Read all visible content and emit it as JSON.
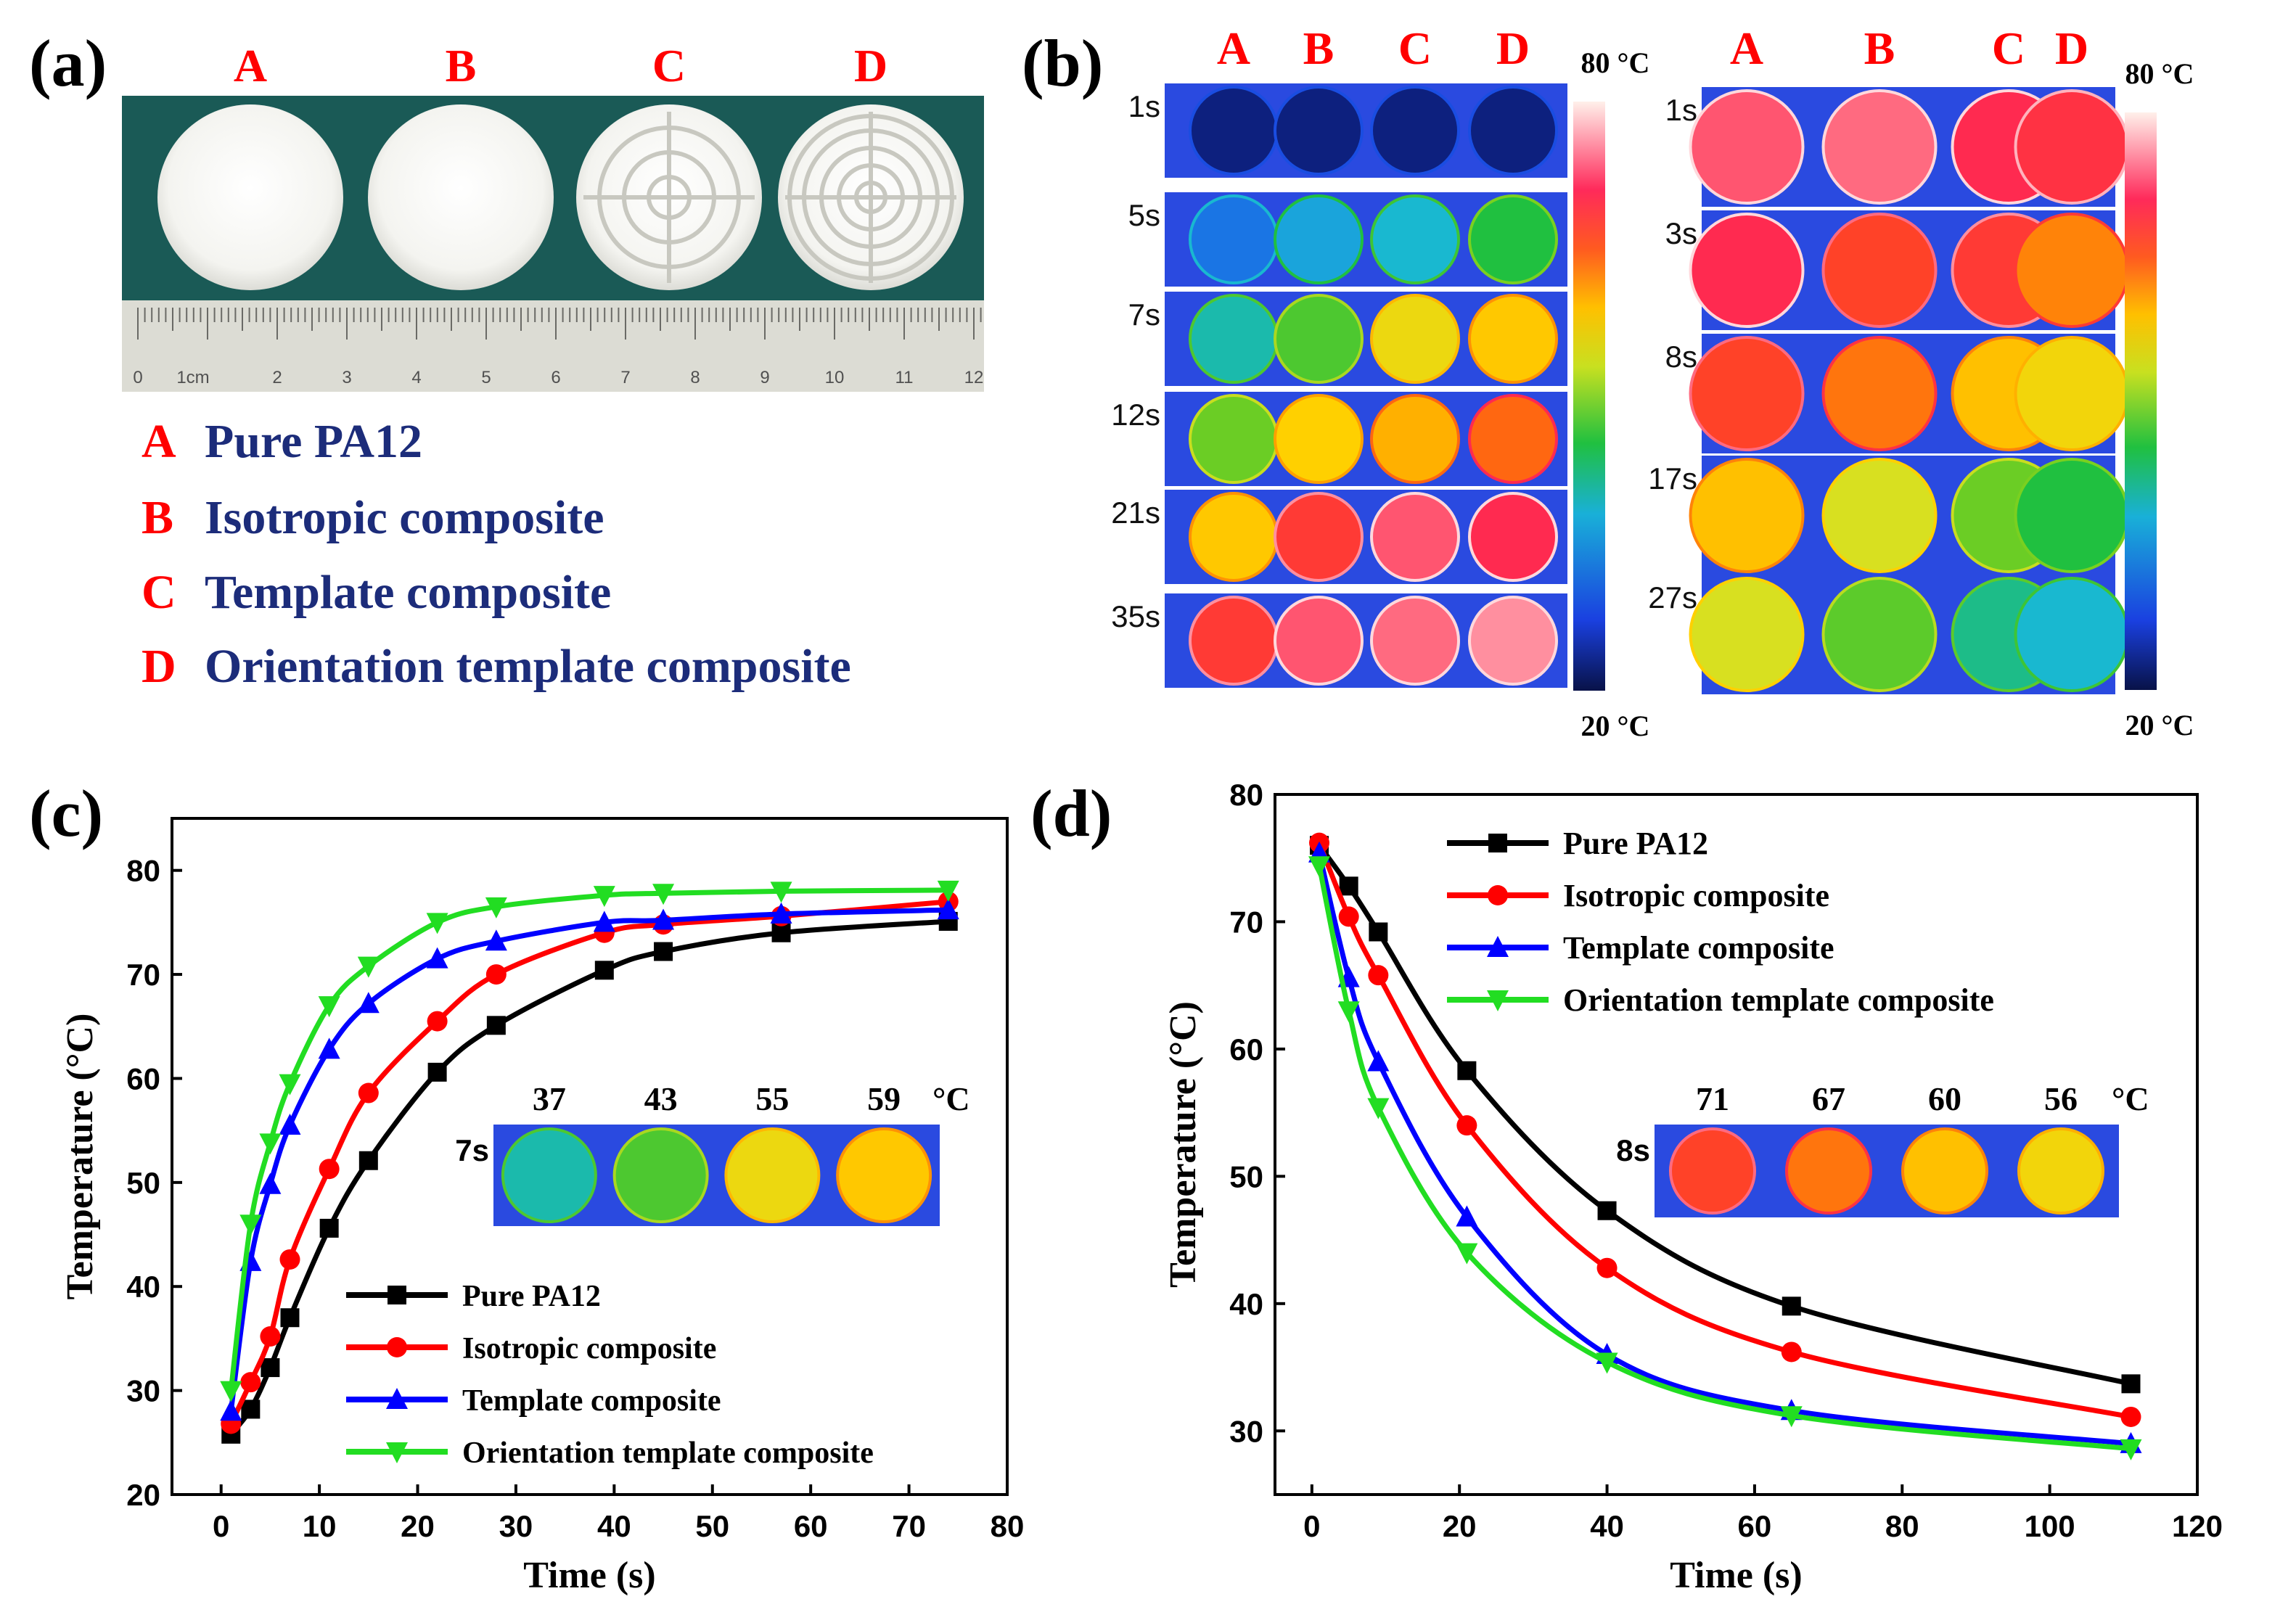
{
  "figure": {
    "panel_a": {
      "label": "(a)",
      "column_letters": [
        "A",
        "B",
        "C",
        "D"
      ],
      "ruler_unit": "1cm",
      "ruler_numbers": [
        "0",
        "2",
        "3",
        "4",
        "5",
        "6",
        "7",
        "8",
        "9",
        "10",
        "11",
        "12"
      ],
      "legend": [
        {
          "letter": "A",
          "text": "Pure PA12"
        },
        {
          "letter": "B",
          "text": "Isotropic composite"
        },
        {
          "letter": "C",
          "text": "Template composite"
        },
        {
          "letter": "D",
          "text": "Orientation template composite"
        }
      ]
    },
    "panel_b": {
      "label": "(b)",
      "column_letters": [
        "A",
        "B",
        "C",
        "D"
      ],
      "heating": {
        "times": [
          "1s",
          "5s",
          "7s",
          "12s",
          "21s",
          "35s"
        ],
        "temperatures_c": [
          [
            21,
            21,
            21,
            21
          ],
          [
            30,
            34,
            36,
            40
          ],
          [
            37,
            43,
            55,
            59
          ],
          [
            45,
            58,
            62,
            68
          ],
          [
            59,
            72,
            76,
            74
          ],
          [
            72,
            76,
            77,
            78
          ]
        ]
      },
      "cooling": {
        "times": [
          "1s",
          "3s",
          "8s",
          "17s",
          "27s"
        ],
        "temperatures_c": [
          [
            76,
            77,
            74,
            73
          ],
          [
            74,
            71,
            72,
            66
          ],
          [
            71,
            67,
            60,
            56
          ],
          [
            60,
            52,
            45,
            40
          ],
          [
            52,
            44,
            38,
            36
          ]
        ]
      },
      "scale_max_label": "80 °C",
      "scale_min_label": "20 °C"
    },
    "panel_c_label": "(c)",
    "panel_c_inset": {
      "time_label": "7s",
      "values": [
        "37",
        "43",
        "55",
        "59"
      ],
      "unit": "°C",
      "temperatures_c": [
        37,
        43,
        55,
        59
      ]
    },
    "panel_d_label": "(d)",
    "panel_d_inset": {
      "time_label": "8s",
      "values": [
        "71",
        "67",
        "60",
        "56"
      ],
      "unit": "°C",
      "temperatures_c": [
        71,
        67,
        60,
        56
      ]
    }
  },
  "series_colors": {
    "Pure PA12": "#000000",
    "Isotropic composite": "#ff0000",
    "Template composite": "#0000ff",
    "Orientation template composite": "#22dd22"
  },
  "chart_data": [
    {
      "id": "c",
      "type": "line",
      "title": "",
      "xlabel": "Time (s)",
      "ylabel": "Temperature (°C)",
      "xlim": [
        -5,
        80
      ],
      "ylim": [
        20,
        85
      ],
      "xticks": [
        0,
        10,
        20,
        30,
        40,
        50,
        60,
        70,
        80
      ],
      "yticks": [
        20,
        30,
        40,
        50,
        60,
        70,
        80
      ],
      "legend_position": "lower-right",
      "series": [
        {
          "name": "Pure PA12",
          "marker": "square",
          "x": [
            1,
            3,
            5,
            7,
            11,
            15,
            22,
            28,
            39,
            45,
            57,
            74
          ],
          "y": [
            25.8,
            28.2,
            32.2,
            37.0,
            45.6,
            52.1,
            60.6,
            65.1,
            70.4,
            72.2,
            74.0,
            75.1
          ]
        },
        {
          "name": "Isotropic composite",
          "marker": "circle",
          "x": [
            1,
            3,
            5,
            7,
            11,
            15,
            22,
            28,
            39,
            45,
            57,
            74
          ],
          "y": [
            26.8,
            30.8,
            35.2,
            42.6,
            51.3,
            58.6,
            65.5,
            70.0,
            74.0,
            74.8,
            75.6,
            77.0
          ]
        },
        {
          "name": "Template composite",
          "marker": "triangle-up",
          "x": [
            1,
            3,
            5,
            7,
            11,
            15,
            22,
            28,
            39,
            45,
            57,
            74
          ],
          "y": [
            28.0,
            42.4,
            49.8,
            55.5,
            62.8,
            67.2,
            71.5,
            73.2,
            75.0,
            75.2,
            75.8,
            76.2
          ]
        },
        {
          "name": "Orientation template composite",
          "marker": "triangle-down",
          "x": [
            1,
            3,
            5,
            7,
            11,
            15,
            22,
            28,
            39,
            45,
            57,
            74
          ],
          "y": [
            30.0,
            46.0,
            53.8,
            59.5,
            67.0,
            70.8,
            75.0,
            76.5,
            77.6,
            77.8,
            78.0,
            78.1
          ]
        }
      ]
    },
    {
      "id": "d",
      "type": "line",
      "title": "",
      "xlabel": "Time (s)",
      "ylabel": "Temperature (°C)",
      "xlim": [
        -5,
        120
      ],
      "ylim": [
        25,
        80
      ],
      "xticks": [
        0,
        20,
        40,
        60,
        80,
        100,
        120
      ],
      "yticks": [
        30,
        40,
        50,
        60,
        70,
        80
      ],
      "legend_position": "top-right",
      "series": [
        {
          "name": "Pure PA12",
          "marker": "square",
          "x": [
            1,
            5,
            9,
            21,
            40,
            65,
            111
          ],
          "y": [
            76.0,
            72.8,
            69.2,
            58.3,
            47.3,
            39.8,
            33.7
          ]
        },
        {
          "name": "Isotropic composite",
          "marker": "circle",
          "x": [
            1,
            5,
            9,
            21,
            40,
            65,
            111
          ],
          "y": [
            76.2,
            70.4,
            65.8,
            54.0,
            42.8,
            36.2,
            31.1
          ]
        },
        {
          "name": "Template composite",
          "marker": "triangle-up",
          "x": [
            1,
            5,
            9,
            21,
            40,
            65,
            111
          ],
          "y": [
            75.4,
            65.6,
            59.0,
            46.8,
            36.0,
            31.6,
            29.0
          ]
        },
        {
          "name": "Orientation template composite",
          "marker": "triangle-down",
          "x": [
            1,
            5,
            9,
            21,
            40,
            65,
            111
          ],
          "y": [
            74.4,
            63.0,
            55.4,
            44.0,
            35.4,
            31.2,
            28.6
          ]
        }
      ]
    }
  ]
}
